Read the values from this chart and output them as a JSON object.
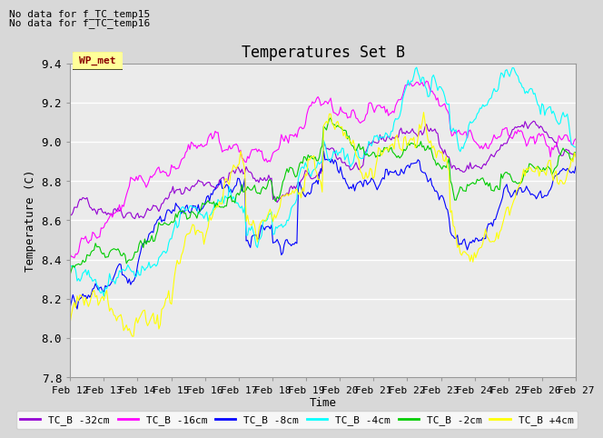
{
  "title": "Temperatures Set B",
  "ylabel": "Temperature (C)",
  "xlabel": "Time",
  "ylim": [
    7.8,
    9.4
  ],
  "yticks": [
    7.8,
    8.0,
    8.2,
    8.4,
    8.6,
    8.8,
    9.0,
    9.2,
    9.4
  ],
  "xlabels": [
    "Feb 12",
    "Feb 13",
    "Feb 14",
    "Feb 15",
    "Feb 16",
    "Feb 17",
    "Feb 18",
    "Feb 19",
    "Feb 20",
    "Feb 21",
    "Feb 22",
    "Feb 23",
    "Feb 24",
    "Feb 25",
    "Feb 26",
    "Feb 27"
  ],
  "annotations": [
    "No data for f_TC_temp15",
    "No data for f_TC_temp16"
  ],
  "wp_met_label": "WP_met",
  "legend_entries": [
    {
      "label": "TC_B -32cm",
      "color": "#9400D3"
    },
    {
      "label": "TC_B -16cm",
      "color": "#FF00FF"
    },
    {
      "label": "TC_B -8cm",
      "color": "#0000FF"
    },
    {
      "label": "TC_B -4cm",
      "color": "#00FFFF"
    },
    {
      "label": "TC_B -2cm",
      "color": "#00CC00"
    },
    {
      "label": "TC_B +4cm",
      "color": "#FFFF00"
    }
  ],
  "line_colors": [
    "#9400D3",
    "#FF00FF",
    "#0000FF",
    "#00FFFF",
    "#00CC00",
    "#FFFF00"
  ],
  "background_color": "#D8D8D8",
  "plot_bg_color": "#EBEBEB",
  "grid_color": "#FFFFFF",
  "num_points": 360
}
